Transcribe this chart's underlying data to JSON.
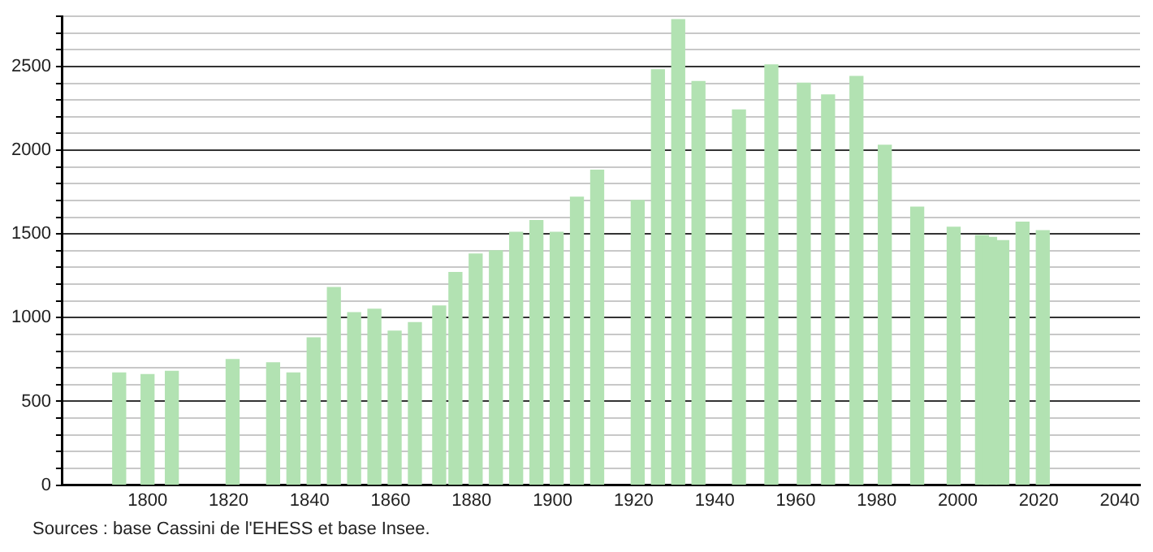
{
  "chart_data": {
    "type": "bar",
    "x": [
      1793,
      1800,
      1806,
      1821,
      1831,
      1836,
      1841,
      1846,
      1851,
      1856,
      1861,
      1866,
      1872,
      1876,
      1881,
      1886,
      1891,
      1896,
      1901,
      1906,
      1911,
      1921,
      1926,
      1931,
      1936,
      1946,
      1954,
      1962,
      1968,
      1975,
      1982,
      1990,
      1999,
      2006,
      2008,
      2011,
      2016,
      2021
    ],
    "values": [
      670,
      660,
      680,
      750,
      730,
      670,
      880,
      1180,
      1030,
      1050,
      920,
      970,
      1070,
      1270,
      1380,
      1400,
      1510,
      1580,
      1510,
      1720,
      1880,
      1700,
      2480,
      2780,
      2410,
      2240,
      2510,
      2400,
      2330,
      2440,
      2030,
      1660,
      1540,
      1490,
      1480,
      1460,
      1570,
      1520
    ],
    "color": "#b2e2b2",
    "xlim": [
      1779,
      2045
    ],
    "xticks": [
      1800,
      1820,
      1840,
      1860,
      1880,
      1900,
      1920,
      1940,
      1960,
      1980,
      2000,
      2020,
      2040
    ],
    "ylim": [
      0,
      2800
    ],
    "yticks": [
      0,
      {
        "value": 100,
        "label": null
      },
      {
        "value": 200,
        "label": null
      },
      {
        "value": 300,
        "label": null
      },
      {
        "value": 400,
        "label": null
      },
      500,
      {
        "value": 600,
        "label": null
      },
      {
        "value": 700,
        "label": null
      },
      {
        "value": 800,
        "label": null
      },
      {
        "value": 900,
        "label": null
      },
      1000,
      {
        "value": 1100,
        "label": null
      },
      {
        "value": 1200,
        "label": null
      },
      {
        "value": 1300,
        "label": null
      },
      {
        "value": 1400,
        "label": null
      },
      1500,
      {
        "value": 1600,
        "label": null
      },
      {
        "value": 1700,
        "label": null
      },
      {
        "value": 1800,
        "label": null
      },
      {
        "value": 1900,
        "label": null
      },
      2000,
      {
        "value": 2100,
        "label": null
      },
      {
        "value": 2200,
        "label": null
      },
      {
        "value": 2300,
        "label": null
      },
      {
        "value": 2400,
        "label": null
      },
      2500,
      {
        "value": 2600,
        "label": null
      },
      {
        "value": 2700,
        "label": null
      },
      {
        "value": 2800,
        "label": null
      }
    ],
    "grid": "y",
    "annotations": [
      "Sources : base Cassini de l'EHESS et base Insee."
    ]
  }
}
